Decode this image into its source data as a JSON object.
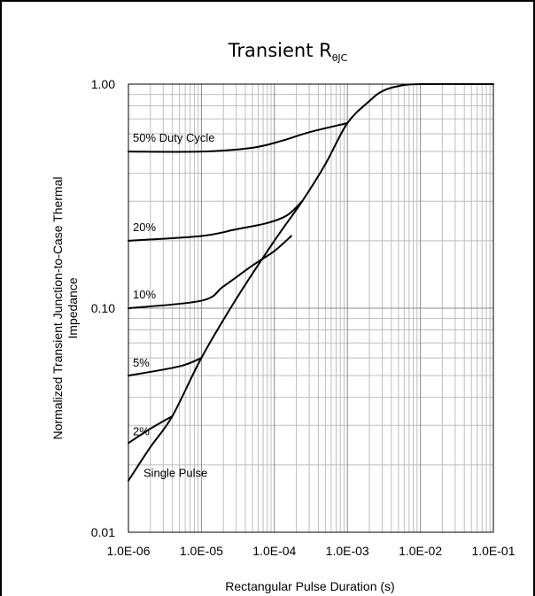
{
  "chart_data": {
    "type": "line",
    "title": "Transient R",
    "title_subscript": "θJC",
    "xlabel": "Rectangular Pulse Duration (s)",
    "ylabel_lines": [
      "Normalized Transient Junction-to-Case Thermal",
      "Impedance"
    ],
    "x_scale": "log",
    "y_scale": "log",
    "xlim": [
      1e-06,
      0.1
    ],
    "ylim": [
      0.01,
      1.0
    ],
    "x_tick_values": [
      1e-06,
      1e-05,
      0.0001,
      0.001,
      0.01,
      0.1
    ],
    "x_tick_labels": [
      "1.0E-06",
      "1.0E-05",
      "1.0E-04",
      "1.0E-03",
      "1.0E-02",
      "1.0E-01"
    ],
    "y_tick_values": [
      0.01,
      0.1,
      1.0
    ],
    "y_tick_labels": [
      "0.01",
      "0.10",
      "1.00"
    ],
    "grid": true,
    "series": [
      {
        "name": "50% Duty Cycle",
        "points": [
          [
            1e-06,
            0.5
          ],
          [
            1e-05,
            0.5
          ],
          [
            5e-05,
            0.52
          ],
          [
            0.00013,
            0.56
          ],
          [
            0.0003,
            0.61
          ],
          [
            0.001,
            0.67
          ]
        ]
      },
      {
        "name": "20%",
        "points": [
          [
            1e-06,
            0.2
          ],
          [
            1e-05,
            0.21
          ],
          [
            3e-05,
            0.225
          ],
          [
            8e-05,
            0.24
          ],
          [
            0.00015,
            0.26
          ],
          [
            0.00024,
            0.3
          ]
        ]
      },
      {
        "name": "10%",
        "points": [
          [
            1e-06,
            0.1
          ],
          [
            1e-05,
            0.108
          ],
          [
            2e-05,
            0.125
          ],
          [
            5e-05,
            0.155
          ],
          [
            0.0001,
            0.18
          ],
          [
            0.00017,
            0.21
          ]
        ]
      },
      {
        "name": "5%",
        "points": [
          [
            1e-06,
            0.05
          ],
          [
            5e-06,
            0.055
          ],
          [
            1e-05,
            0.06
          ]
        ]
      },
      {
        "name": "2%",
        "points": [
          [
            1e-06,
            0.025
          ],
          [
            2e-06,
            0.029
          ],
          [
            4e-06,
            0.033
          ]
        ]
      },
      {
        "name": "Single Pulse",
        "points": [
          [
            1e-06,
            0.017
          ],
          [
            2e-06,
            0.024
          ],
          [
            4e-06,
            0.033
          ],
          [
            1e-05,
            0.06
          ],
          [
            3e-05,
            0.11
          ],
          [
            0.0001,
            0.2
          ],
          [
            0.00024,
            0.3
          ],
          [
            0.0005,
            0.44
          ],
          [
            0.001,
            0.67
          ],
          [
            0.002,
            0.84
          ],
          [
            0.003,
            0.93
          ],
          [
            0.005,
            0.98
          ],
          [
            0.01,
            1.0
          ],
          [
            0.1,
            1.0
          ]
        ]
      }
    ]
  }
}
